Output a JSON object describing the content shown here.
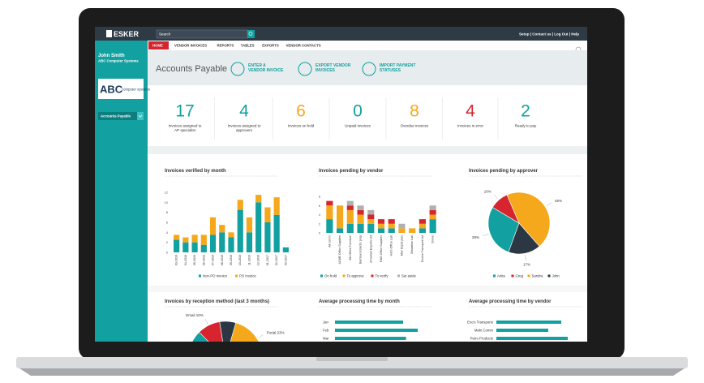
{
  "topbar": {
    "logo": "ESKER",
    "search": "Search",
    "links": "Setup | Contact us | Log Out | Help"
  },
  "nav": {
    "tabs": [
      "HOME",
      "VENDOR INVOICES",
      "REPORTS",
      "TABLES",
      "EXPORTS",
      "VENDOR CONTACTS"
    ]
  },
  "sidebar": {
    "user": "John Smith",
    "company": "ABC Computer Systems",
    "logo": {
      "big": "ABC",
      "small": "computer systems"
    },
    "menu": "Accounts Payable"
  },
  "header": {
    "title": "Accounts Payable",
    "actions": [
      {
        "lines": [
          "ENTER A",
          "VENDOR INVOICE"
        ]
      },
      {
        "lines": [
          "EXPORT VENDOR",
          "INVOICES"
        ]
      },
      {
        "lines": [
          "IMPORT PAYMENT",
          "STATUSES"
        ]
      }
    ]
  },
  "kpis": [
    {
      "value": 17,
      "color": "#12a0a0",
      "lines": [
        "Invoices assigned to",
        "AP specialist"
      ]
    },
    {
      "value": 4,
      "color": "#12a0a0",
      "lines": [
        "Invoices assigned to",
        "approvers"
      ]
    },
    {
      "value": 6,
      "color": "#f5a81c",
      "lines": [
        "Invoices on hold"
      ]
    },
    {
      "value": 0,
      "color": "#12a0a0",
      "lines": [
        "Unpaid invoices"
      ]
    },
    {
      "value": 8,
      "color": "#f5a81c",
      "lines": [
        "Overdue invoices"
      ]
    },
    {
      "value": 4,
      "color": "#d6252f",
      "lines": [
        "Invoices in error"
      ]
    },
    {
      "value": 2,
      "color": "#12a0a0",
      "lines": [
        "Ready to pay"
      ]
    }
  ],
  "chart_data": [
    {
      "type": "bar",
      "stacked": true,
      "title": "Invoices verified by month",
      "categories": [
        "03-2016",
        "04-2016",
        "05-2016",
        "06-2016",
        "07-2016",
        "08-2016",
        "09-2016",
        "10-2016",
        "11-2016",
        "12-2016",
        "01-2017",
        "02-2017",
        "03-2017"
      ],
      "series": [
        {
          "name": "Non-PO invoice",
          "color": "#12a0a0",
          "values": [
            2.5,
            2,
            2,
            1.5,
            3.5,
            4,
            3,
            8.5,
            4,
            10,
            6,
            7.5,
            1
          ]
        },
        {
          "name": "PO invoice",
          "color": "#f5a81c",
          "values": [
            1,
            1,
            1.5,
            2,
            3.5,
            1.5,
            1,
            2,
            3,
            1.5,
            3,
            3.5,
            0
          ]
        }
      ],
      "ylim": [
        0,
        12
      ],
      "yticks": [
        0,
        2,
        4,
        6,
        8,
        10,
        12
      ],
      "grid": false
    },
    {
      "type": "bar",
      "stacked": true,
      "title": "Invoices pending by vendor",
      "categories": [
        "All comm",
        "ACME Office Supplies",
        "BK Office Furniture",
        "Bamboo Eclectic prop",
        "Arrowbar Exports Ltd",
        "R&G Office Supplies",
        "Hut's Office Lab",
        "Man Depot plus",
        "Sebastian Lab",
        "Evolve Transport Ltd",
        "Grove"
      ],
      "series": [
        {
          "name": "On hold",
          "color": "#12a0a0",
          "values": [
            3,
            1,
            2,
            2,
            2,
            1,
            1,
            0,
            0,
            1,
            3
          ]
        },
        {
          "name": "To approve",
          "color": "#f5a81c",
          "values": [
            3,
            5,
            3,
            2,
            1,
            1,
            1,
            1,
            1,
            1,
            1
          ]
        },
        {
          "name": "To verify",
          "color": "#d6252f",
          "values": [
            1,
            0,
            1,
            1,
            1,
            1,
            1,
            0,
            0,
            1,
            1
          ]
        },
        {
          "name": "Set aside",
          "color": "#b0b0b0",
          "values": [
            0,
            0,
            1,
            1,
            1,
            0,
            0,
            1,
            0,
            0,
            1
          ]
        }
      ],
      "ylim": [
        0,
        8
      ],
      "yticks": [
        0,
        2,
        4,
        6,
        8
      ],
      "grid": false
    },
    {
      "type": "pie",
      "title": "Invoices pending by approver",
      "categories": [
        "Anita",
        "Greg",
        "Sandra",
        "John"
      ],
      "values": [
        28,
        10,
        45,
        17
      ],
      "value_labels": [
        "28%",
        "10%",
        "45%",
        "17%"
      ],
      "colors": [
        "#12a0a0",
        "#d6252f",
        "#f5a81c",
        "#2b3843"
      ],
      "legend": true
    },
    {
      "type": "pie",
      "title": "Invoices by reception method (last 3 months)",
      "categories": [
        null,
        null,
        null,
        null
      ],
      "values": [
        10,
        7,
        23,
        60
      ],
      "value_labels": [
        "Email 10%",
        null,
        "Portal 23%",
        null
      ],
      "colors": [
        "#d6252f",
        "#2b3843",
        "#f5a81c",
        "#12a0a0"
      ],
      "legend": false
    },
    {
      "type": "barh",
      "title": "Average processing time by month",
      "categories": [
        "Jan",
        "Feb",
        "Mar"
      ],
      "values": [
        7,
        8.5,
        7.3
      ],
      "color": "#12a0a0",
      "xlim": [
        0,
        10
      ]
    },
    {
      "type": "barh",
      "title": "Average processing time by vendor",
      "categories": [
        "Evo's Transports",
        "Mahi Comm",
        "Petro Products"
      ],
      "values": [
        8,
        6.4,
        8.8
      ],
      "color": "#12a0a0",
      "xlim": [
        0,
        10
      ]
    }
  ]
}
